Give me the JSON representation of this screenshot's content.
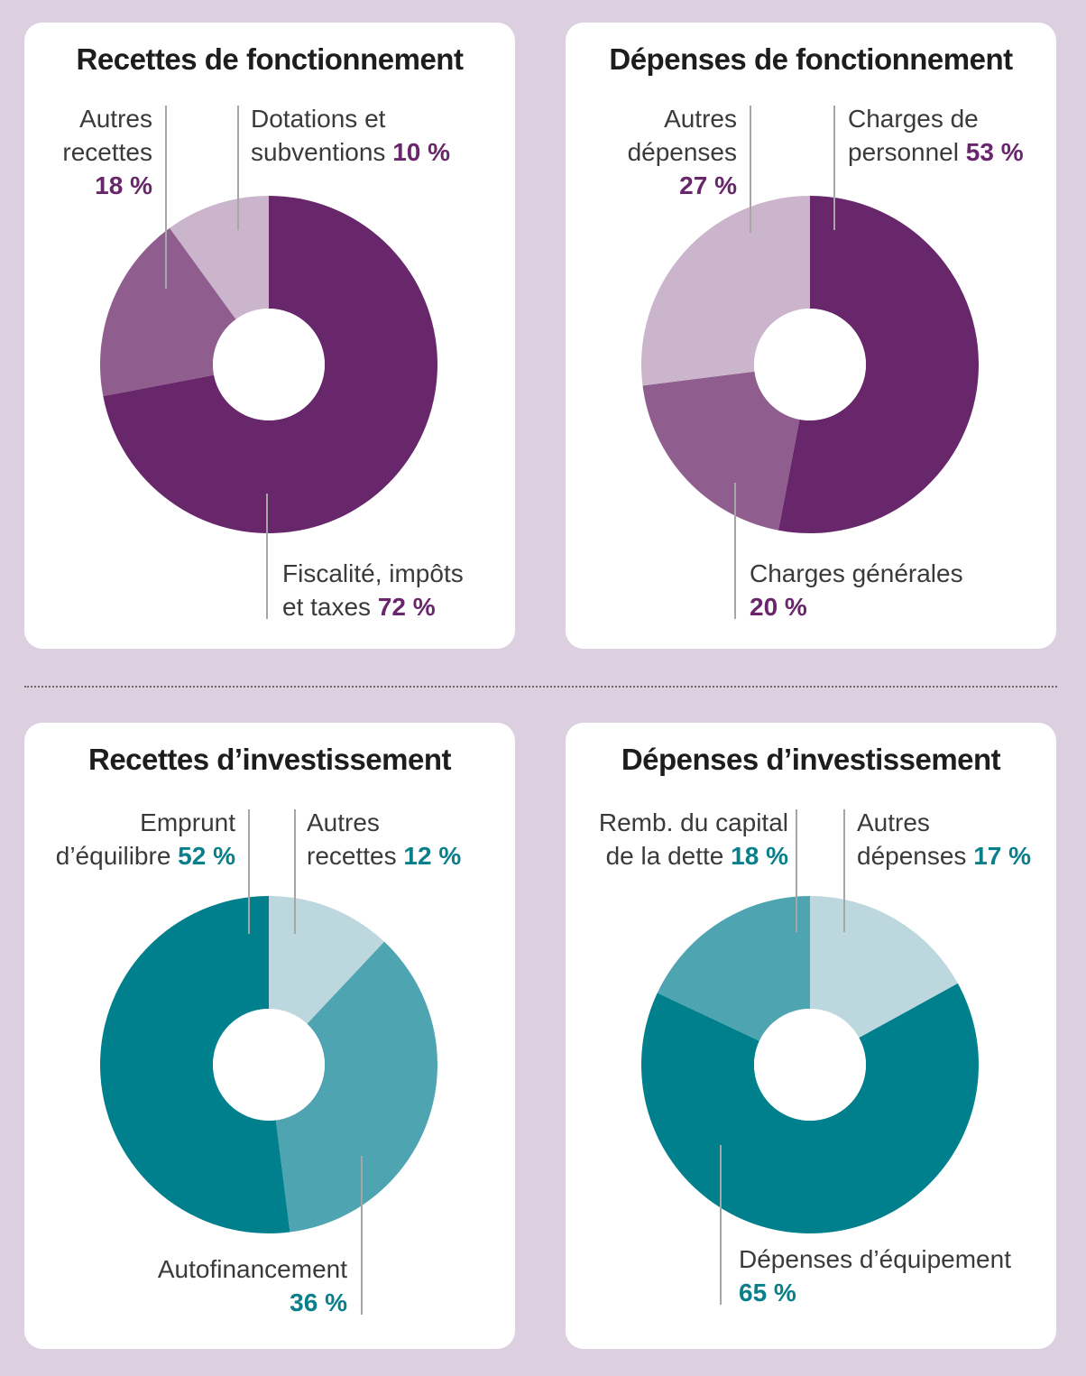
{
  "colors": {
    "background": "#dccfe0",
    "purple_dark": "#68266b",
    "purple_mid": "#8f5e8f",
    "purple_light": "#cbb5cd",
    "teal_dark": "#00808c",
    "teal_mid": "#4ea5b1",
    "teal_light": "#bcd7dd",
    "leader_line": "#a6a6a6"
  },
  "chart_data": [
    {
      "type": "pie",
      "title": "Recettes de fonctionnement",
      "unit": "%",
      "slices": [
        {
          "name": "Fiscalité, impôts et taxes",
          "label_lines": [
            "Fiscalité, impôts",
            "et taxes"
          ],
          "value": 72,
          "value_label": "72 %",
          "color": "#68266b"
        },
        {
          "name": "Autres recettes",
          "label_lines": [
            "Autres",
            "recettes"
          ],
          "value": 18,
          "value_label": "18 %",
          "color": "#8f5e8f"
        },
        {
          "name": "Dotations et subventions",
          "label_lines": [
            "Dotations et",
            "subventions"
          ],
          "value": 10,
          "value_label": "10 %",
          "color": "#cbb5cd"
        }
      ]
    },
    {
      "type": "pie",
      "title": "Dépenses de fonctionnement",
      "unit": "%",
      "slices": [
        {
          "name": "Charges de personnel",
          "label_lines": [
            "Charges de",
            "personnel"
          ],
          "value": 53,
          "value_label": "53 %",
          "color": "#68266b"
        },
        {
          "name": "Charges générales",
          "label_lines": [
            "Charges générales",
            ""
          ],
          "value": 20,
          "value_label": "20 %",
          "color": "#8f5e8f"
        },
        {
          "name": "Autres dépenses",
          "label_lines": [
            "Autres",
            "dépenses"
          ],
          "value": 27,
          "value_label": "27 %",
          "color": "#cbb5cd"
        }
      ]
    },
    {
      "type": "pie",
      "title": "Recettes d’investissement",
      "unit": "%",
      "slices": [
        {
          "name": "Autres recettes",
          "label_lines": [
            "Autres",
            "recettes"
          ],
          "value": 12,
          "value_label": "12 %",
          "color": "#bcd7dd"
        },
        {
          "name": "Autofinancement",
          "label_lines": [
            "Autofinancement",
            ""
          ],
          "value": 36,
          "value_label": "36 %",
          "color": "#4ea5b1"
        },
        {
          "name": "Emprunt d’équilibre",
          "label_lines": [
            "Emprunt",
            "d’équilibre"
          ],
          "value": 52,
          "value_label": "52 %",
          "color": "#00808c"
        }
      ]
    },
    {
      "type": "pie",
      "title": "Dépenses d’investissement",
      "unit": "%",
      "slices": [
        {
          "name": "Autres dépenses",
          "label_lines": [
            "Autres",
            "dépenses"
          ],
          "value": 17,
          "value_label": "17 %",
          "color": "#bcd7dd"
        },
        {
          "name": "Dépenses d’équipement",
          "label_lines": [
            "Dépenses d’équipement",
            ""
          ],
          "value": 65,
          "value_label": "65 %",
          "color": "#00808c"
        },
        {
          "name": "Remb. du capital de la dette",
          "label_lines": [
            "Remb. du capital",
            "de la dette"
          ],
          "value": 18,
          "value_label": "18 %",
          "color": "#4ea5b1"
        }
      ]
    }
  ]
}
